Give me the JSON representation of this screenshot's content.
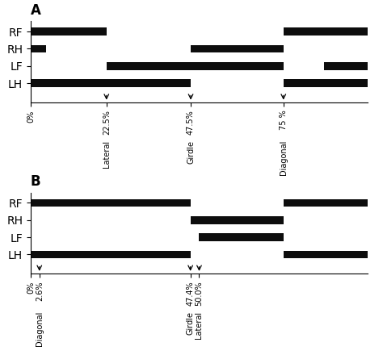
{
  "chart_data": [
    {
      "type": "bar",
      "orientation": "horizontal",
      "title": "A",
      "categories": [
        "RF",
        "RH",
        "LF",
        "LH"
      ],
      "values": [
        [
          [
            0,
            22.5
          ],
          [
            75,
            100
          ]
        ],
        [
          [
            0,
            4.5
          ],
          [
            47.5,
            75
          ]
        ],
        [
          [
            22.5,
            75
          ],
          [
            87,
            100
          ]
        ],
        [
          [
            0,
            47.5
          ],
          [
            75,
            100
          ]
        ]
      ],
      "color": "#0d0d0d",
      "xlim": [
        0,
        100
      ],
      "xticks": [
        {
          "value": 0,
          "label": "0%"
        },
        {
          "value": 22.5,
          "label": "22.5%"
        },
        {
          "value": 47.5,
          "label": "47.5%"
        },
        {
          "value": 75,
          "label": "75 %"
        }
      ],
      "annotations": [
        {
          "x": 22.5,
          "text": "Lateral"
        },
        {
          "x": 47.5,
          "text": "Girdle"
        },
        {
          "x": 75,
          "text": "Diagonal"
        }
      ]
    },
    {
      "type": "bar",
      "orientation": "horizontal",
      "title": "B",
      "categories": [
        "RF",
        "RH",
        "LF",
        "LH"
      ],
      "values": [
        [
          [
            0,
            47.4
          ],
          [
            75,
            100
          ]
        ],
        [
          [
            47.4,
            75
          ]
        ],
        [
          [
            50.0,
            75
          ]
        ],
        [
          [
            0,
            47.4
          ],
          [
            75,
            100
          ]
        ]
      ],
      "color": "#0d0d0d",
      "xlim": [
        0,
        100
      ],
      "xticks": [
        {
          "value": 0,
          "label": "0%"
        },
        {
          "value": 2.6,
          "label": "2.6%"
        },
        {
          "value": 47.4,
          "label": "47.4%"
        },
        {
          "value": 50.0,
          "label": "50.0%"
        }
      ],
      "annotations": [
        {
          "x": 2.6,
          "text": "Diagonal"
        },
        {
          "x": 47.4,
          "text": "Girdle"
        },
        {
          "x": 50.0,
          "text": "Lateral"
        }
      ]
    }
  ]
}
